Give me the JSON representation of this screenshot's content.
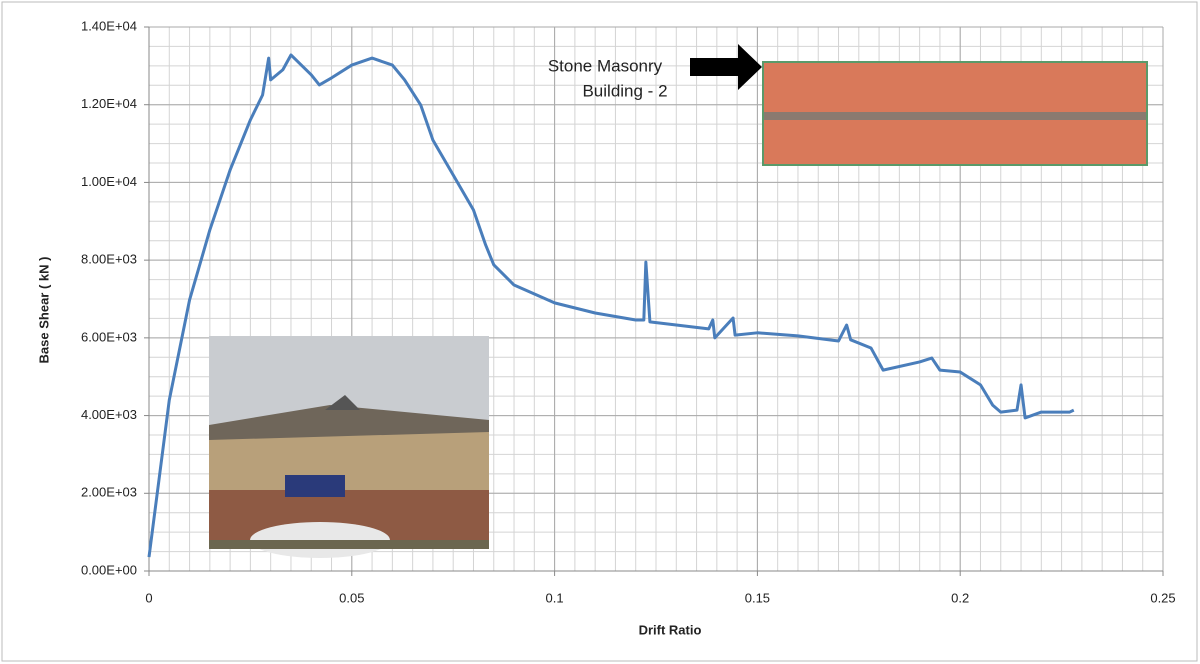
{
  "chart_data": {
    "type": "line",
    "xlabel": "Drift Ratio",
    "ylabel": "Base Shear ( kN )",
    "annotations": [
      "Stone Masonry",
      "Building - 2"
    ],
    "xlim": [
      0,
      0.25
    ],
    "xticks": [
      0,
      0.05,
      0.1,
      0.15,
      0.2,
      0.25
    ],
    "ylim": [
      0,
      14000
    ],
    "yticks": [
      {
        "value": 0,
        "label": "0.00E+00"
      },
      {
        "value": 2000,
        "label": "2.00E+03"
      },
      {
        "value": 4000,
        "label": "4.00E+03"
      },
      {
        "value": 6000,
        "label": "6.00E+03"
      },
      {
        "value": 8000,
        "label": "8.00E+03"
      },
      {
        "value": 10000,
        "label": "1.00E+04"
      },
      {
        "value": 12000,
        "label": "1.20E+04"
      },
      {
        "value": 14000,
        "label": "1.40E+04"
      }
    ],
    "grid": true,
    "minor_grid": [
      0.005,
      500
    ],
    "series": [
      {
        "color": "#4a7ebb",
        "x": [
          0,
          0.005,
          0.01,
          0.015,
          0.02,
          0.025,
          0.028,
          0.0295,
          0.03,
          0.033,
          0.035,
          0.04,
          0.042,
          0.045,
          0.05,
          0.055,
          0.06,
          0.063,
          0.067,
          0.07,
          0.075,
          0.08,
          0.083,
          0.085,
          0.09,
          0.1,
          0.11,
          0.12,
          0.122,
          0.1225,
          0.1235,
          0.13,
          0.138,
          0.139,
          0.1395,
          0.144,
          0.1445,
          0.15,
          0.16,
          0.17,
          0.172,
          0.173,
          0.178,
          0.181,
          0.19,
          0.193,
          0.195,
          0.2,
          0.205,
          0.208,
          0.21,
          0.214,
          0.215,
          0.216,
          0.22,
          0.227,
          0.228
        ],
        "values": [
          360,
          4400,
          6975,
          8777,
          10320,
          11610,
          12250,
          13200,
          12640,
          12900,
          13280,
          12770,
          12510,
          12690,
          13020,
          13200,
          13020,
          12640,
          11990,
          11090,
          10190,
          9290,
          8390,
          7880,
          7360,
          6900,
          6640,
          6460,
          6460,
          7950,
          6410,
          6330,
          6230,
          6460,
          6000,
          6510,
          6070,
          6130,
          6050,
          5920,
          6330,
          5950,
          5740,
          5170,
          5380,
          5480,
          5170,
          5120,
          4790,
          4270,
          4090,
          4140,
          4790,
          3940,
          4090,
          4090,
          4140
        ]
      }
    ]
  }
}
